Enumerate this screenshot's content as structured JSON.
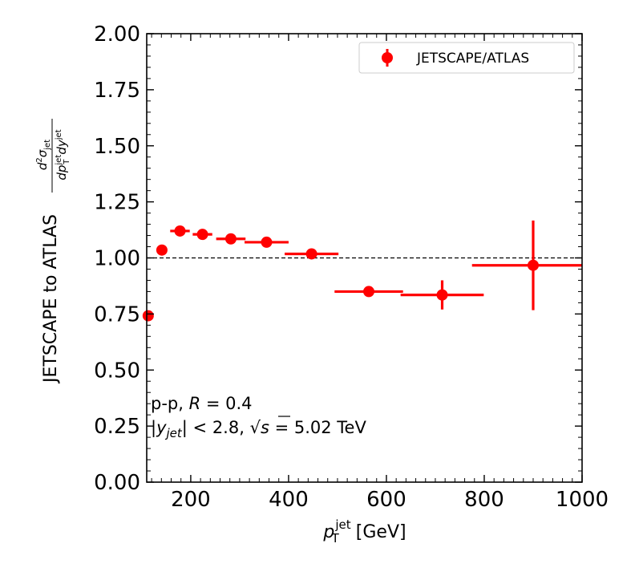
{
  "chart_data": {
    "type": "scatter",
    "xlabel": {
      "main": "p",
      "sup": "jet",
      "sub": "T",
      "unit": " [GeV]"
    },
    "ylabel": {
      "main": "JETSCAPE to ATLAS",
      "frac_num_prefix": "d",
      "frac_num_sup": "2",
      "frac_num_sigma": "σ",
      "frac_num_sub": "jet",
      "frac_den": "dp",
      "frac_den_sup": "jet",
      "frac_den_sub": "T",
      "frac_den_dy": "dy",
      "frac_den_dy_sup": "jet"
    },
    "xlim": [
      110,
      1000
    ],
    "ylim": [
      0,
      2
    ],
    "xticks": [
      200,
      400,
      600,
      800,
      1000
    ],
    "xtick_labels": [
      "200",
      "400",
      "600",
      "800",
      "1000"
    ],
    "yticks": [
      0,
      0.25,
      0.5,
      0.75,
      1.0,
      1.25,
      1.5,
      1.75,
      2.0
    ],
    "ytick_labels": [
      "0.00",
      "0.25",
      "0.50",
      "0.75",
      "1.00",
      "1.25",
      "1.50",
      "1.75",
      "2.00"
    ],
    "reference_line": 1.0,
    "legend_position": "top-right",
    "color": "#ff0000",
    "series": [
      {
        "name": "JETSCAPE/ATLAS",
        "points": [
          {
            "x": 113,
            "y": 0.742,
            "xerr": 0,
            "yerr": 0
          },
          {
            "x": 141,
            "y": 1.035,
            "xerr": 0,
            "yerr": 0.015
          },
          {
            "x": 178,
            "y": 1.12,
            "xerr": 20,
            "yerr": 0.012
          },
          {
            "x": 224,
            "y": 1.105,
            "xerr": 20,
            "yerr": 0.01
          },
          {
            "x": 282,
            "y": 1.085,
            "xerr": 30,
            "yerr": 0.01
          },
          {
            "x": 355,
            "y": 1.07,
            "xerr": 45,
            "yerr": 0.012
          },
          {
            "x": 447,
            "y": 1.018,
            "xerr": 55,
            "yerr": 0.01
          },
          {
            "x": 564,
            "y": 0.85,
            "xerr": 70,
            "yerr": 0.015
          },
          {
            "x": 714,
            "y": 0.835,
            "xerr": 85,
            "yerr": 0.065
          },
          {
            "x": 900,
            "y": 0.967,
            "xerr": 125,
            "yerr": 0.2
          }
        ]
      }
    ],
    "annotations": {
      "line1_prefix": "p-p, ",
      "line1_var": "R",
      "line1_suffix": " = 0.4",
      "line2_open": "|",
      "line2_var": "y",
      "line2_sub": "jet",
      "line2_mid": "| < 2.8, √",
      "line2_s": "s",
      "line2_suffix": " = 5.02 TeV"
    }
  }
}
